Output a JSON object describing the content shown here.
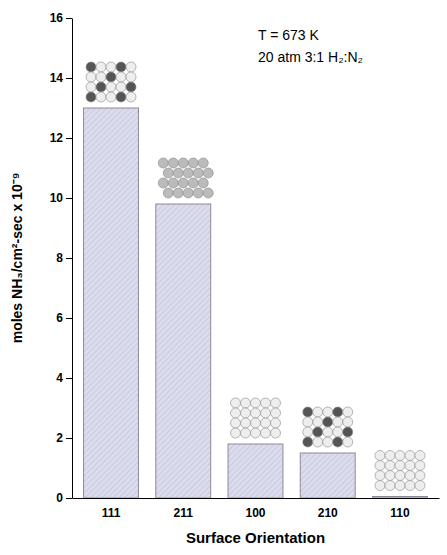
{
  "chart_data": {
    "type": "bar",
    "categories": [
      "111",
      "211",
      "100",
      "210",
      "110"
    ],
    "values": [
      13.0,
      9.8,
      1.8,
      1.5,
      0.05
    ],
    "color": "#dcdcef",
    "x_label": "Surface Orientation",
    "y_label": "moles NH₃/cm²-sec x 10⁻⁹",
    "annotations": [
      "T = 673 K",
      "20 atm 3:1 H₂:N₂"
    ],
    "ylim": [
      0,
      16
    ],
    "yticks": [
      0,
      2,
      4,
      6,
      8,
      10,
      12,
      14,
      16
    ],
    "grid": false
  }
}
